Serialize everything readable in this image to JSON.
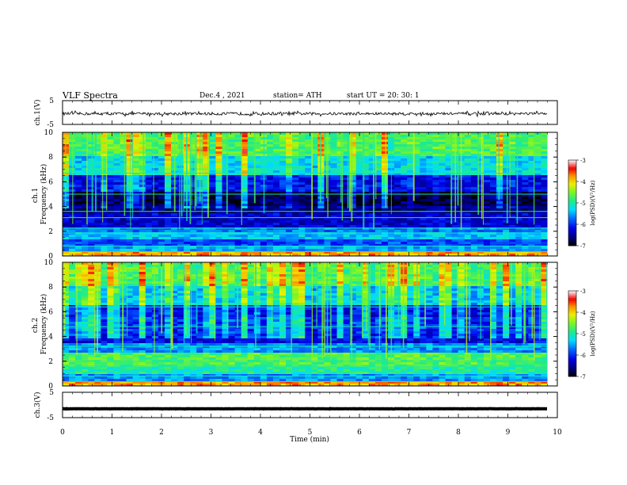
{
  "header": {
    "title": "VLF  Spectra",
    "date": "Dec.4  , 2021",
    "station": "station= ATH",
    "start": "start  UT  =    20: 30: 1"
  },
  "chart_data": [
    {
      "type": "line",
      "ylabel": "ch.1(V)",
      "ylim": [
        -5,
        5
      ],
      "yticks": [
        "5",
        "-5"
      ],
      "xlim": [
        0,
        10
      ],
      "series": [
        {
          "x": [
            0,
            9.8
          ],
          "y": [
            -0.5,
            -0.5
          ],
          "noise_amplitude": 0.6
        }
      ]
    },
    {
      "type": "heatmap",
      "ylabel": "ch.1\nFrequency  (kHz)",
      "ylim": [
        0,
        10
      ],
      "yticks": [
        "0",
        "2",
        "4",
        "6",
        "8",
        "10"
      ],
      "xlim": [
        0,
        10
      ],
      "data_extent_min": 9.8,
      "colorbar": {
        "label": "log(PSD)(V²/Hz)",
        "range": [
          -7,
          -3
        ],
        "ticks": [
          "-3",
          "-4",
          "-5",
          "-6",
          "-7"
        ]
      },
      "bands": [
        {
          "f": [
            0,
            0.4
          ],
          "level": -3.8
        },
        {
          "f": [
            0.4,
            0.7
          ],
          "level": -5.5
        },
        {
          "f": [
            0.7,
            0.85
          ],
          "level": -4.3
        },
        {
          "f": [
            0.85,
            1.4
          ],
          "level": -5.9
        },
        {
          "f": [
            1.4,
            1.9
          ],
          "level": -5.4
        },
        {
          "f": [
            1.9,
            2.4
          ],
          "level": -5.7
        },
        {
          "f": [
            2.4,
            3.4
          ],
          "level": -6.3
        },
        {
          "f": [
            3.4,
            4.1
          ],
          "level": -6.6
        },
        {
          "f": [
            4.1,
            5.2
          ],
          "level": -6.9
        },
        {
          "f": [
            5.2,
            6.5
          ],
          "level": -6.3
        },
        {
          "f": [
            6.5,
            8.0
          ],
          "level": -5.4
        },
        {
          "f": [
            8.0,
            10.0
          ],
          "level": -4.9
        }
      ],
      "lines_khz": [
        0.35,
        0.8,
        1.85,
        2.25,
        3.1,
        3.6,
        5.0,
        6.7
      ]
    },
    {
      "type": "heatmap",
      "ylabel": "ch.2\nFrequency  (kHz)",
      "ylim": [
        0,
        10
      ],
      "yticks": [
        "0",
        "2",
        "4",
        "6",
        "8",
        "10"
      ],
      "xlim": [
        0,
        10
      ],
      "data_extent_min": 9.8,
      "colorbar": {
        "label": "log(PSD)(V²/Hz)",
        "range": [
          -7,
          -3
        ],
        "ticks": [
          "-3",
          "-4",
          "-5",
          "-6",
          "-7"
        ]
      },
      "bands": [
        {
          "f": [
            0,
            0.4
          ],
          "level": -3.8
        },
        {
          "f": [
            0.4,
            1.0
          ],
          "level": -5.6
        },
        {
          "f": [
            1.0,
            1.6
          ],
          "level": -5.0
        },
        {
          "f": [
            1.6,
            2.6
          ],
          "level": -4.7
        },
        {
          "f": [
            2.6,
            3.5
          ],
          "level": -5.6
        },
        {
          "f": [
            3.5,
            4.6
          ],
          "level": -6.2
        },
        {
          "f": [
            4.6,
            5.6
          ],
          "level": -6.1
        },
        {
          "f": [
            5.6,
            6.5
          ],
          "level": -6.3
        },
        {
          "f": [
            6.5,
            8.0
          ],
          "level": -5.5
        },
        {
          "f": [
            8.0,
            10.0
          ],
          "level": -4.9
        }
      ],
      "lines_khz": [
        0.35,
        0.8,
        1.6,
        2.0,
        3.2,
        4.8,
        6.4
      ]
    },
    {
      "type": "line",
      "ylabel": "ch.3(V)",
      "ylim": [
        -5,
        5
      ],
      "yticks": [
        "5",
        "-5"
      ],
      "xlim": [
        0,
        10
      ],
      "series": [
        {
          "x": [
            0,
            9.8
          ],
          "y": [
            -1.5,
            -1.5
          ],
          "noise_amplitude": 0.05
        }
      ]
    }
  ],
  "x_axis": {
    "label": "Time  (min)",
    "ticks": [
      "0",
      "1",
      "2",
      "3",
      "4",
      "5",
      "6",
      "7",
      "8",
      "9",
      "10"
    ]
  }
}
